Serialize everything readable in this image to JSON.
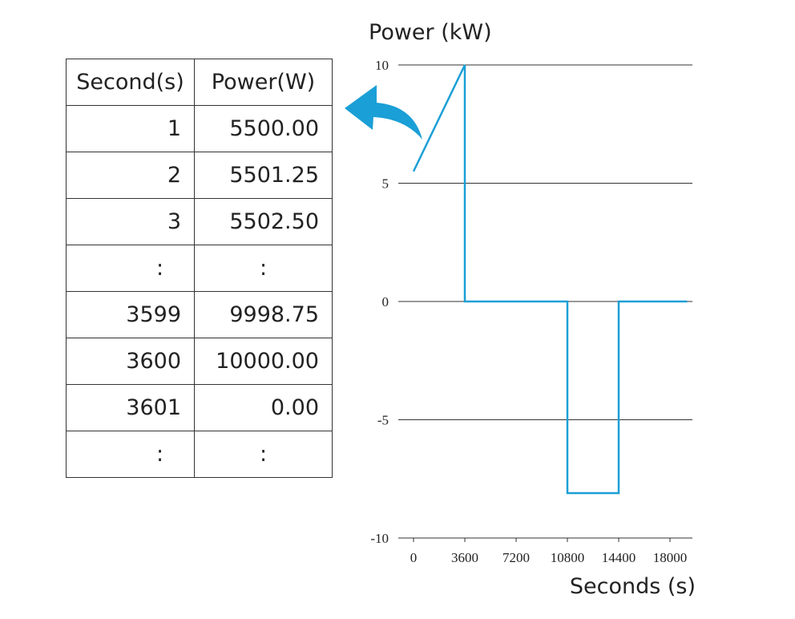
{
  "table": {
    "headers": [
      "Second(s)",
      "Power(W)"
    ],
    "rows": [
      [
        "1",
        "5500.00"
      ],
      [
        "2",
        "5501.25"
      ],
      [
        "3",
        "5502.50"
      ],
      [
        ":",
        ":"
      ],
      [
        "3599",
        "9998.75"
      ],
      [
        "3600",
        "10000.00"
      ],
      [
        "3601",
        "0.00"
      ],
      [
        ":",
        ":"
      ]
    ]
  },
  "chart_data": {
    "type": "line",
    "title": "",
    "ylabel": "Power (kW)",
    "xlabel": "Seconds (s)",
    "ylim": [
      -10,
      10
    ],
    "xlim": [
      0,
      18000
    ],
    "yticks": [
      10,
      5,
      0,
      -5,
      -10
    ],
    "xticks": [
      0,
      3600,
      7200,
      10800,
      14400,
      18000
    ],
    "grid": true,
    "series": [
      {
        "points": [
          [
            0,
            5.5
          ],
          [
            3600,
            10
          ],
          [
            3600,
            0
          ],
          [
            10800,
            0
          ],
          [
            10800,
            -8.1
          ],
          [
            14400,
            -8.1
          ],
          [
            14400,
            0
          ],
          [
            19200,
            0
          ]
        ],
        "color": "#1a9fd6"
      }
    ],
    "arrow_color": "#1a9fd6"
  }
}
